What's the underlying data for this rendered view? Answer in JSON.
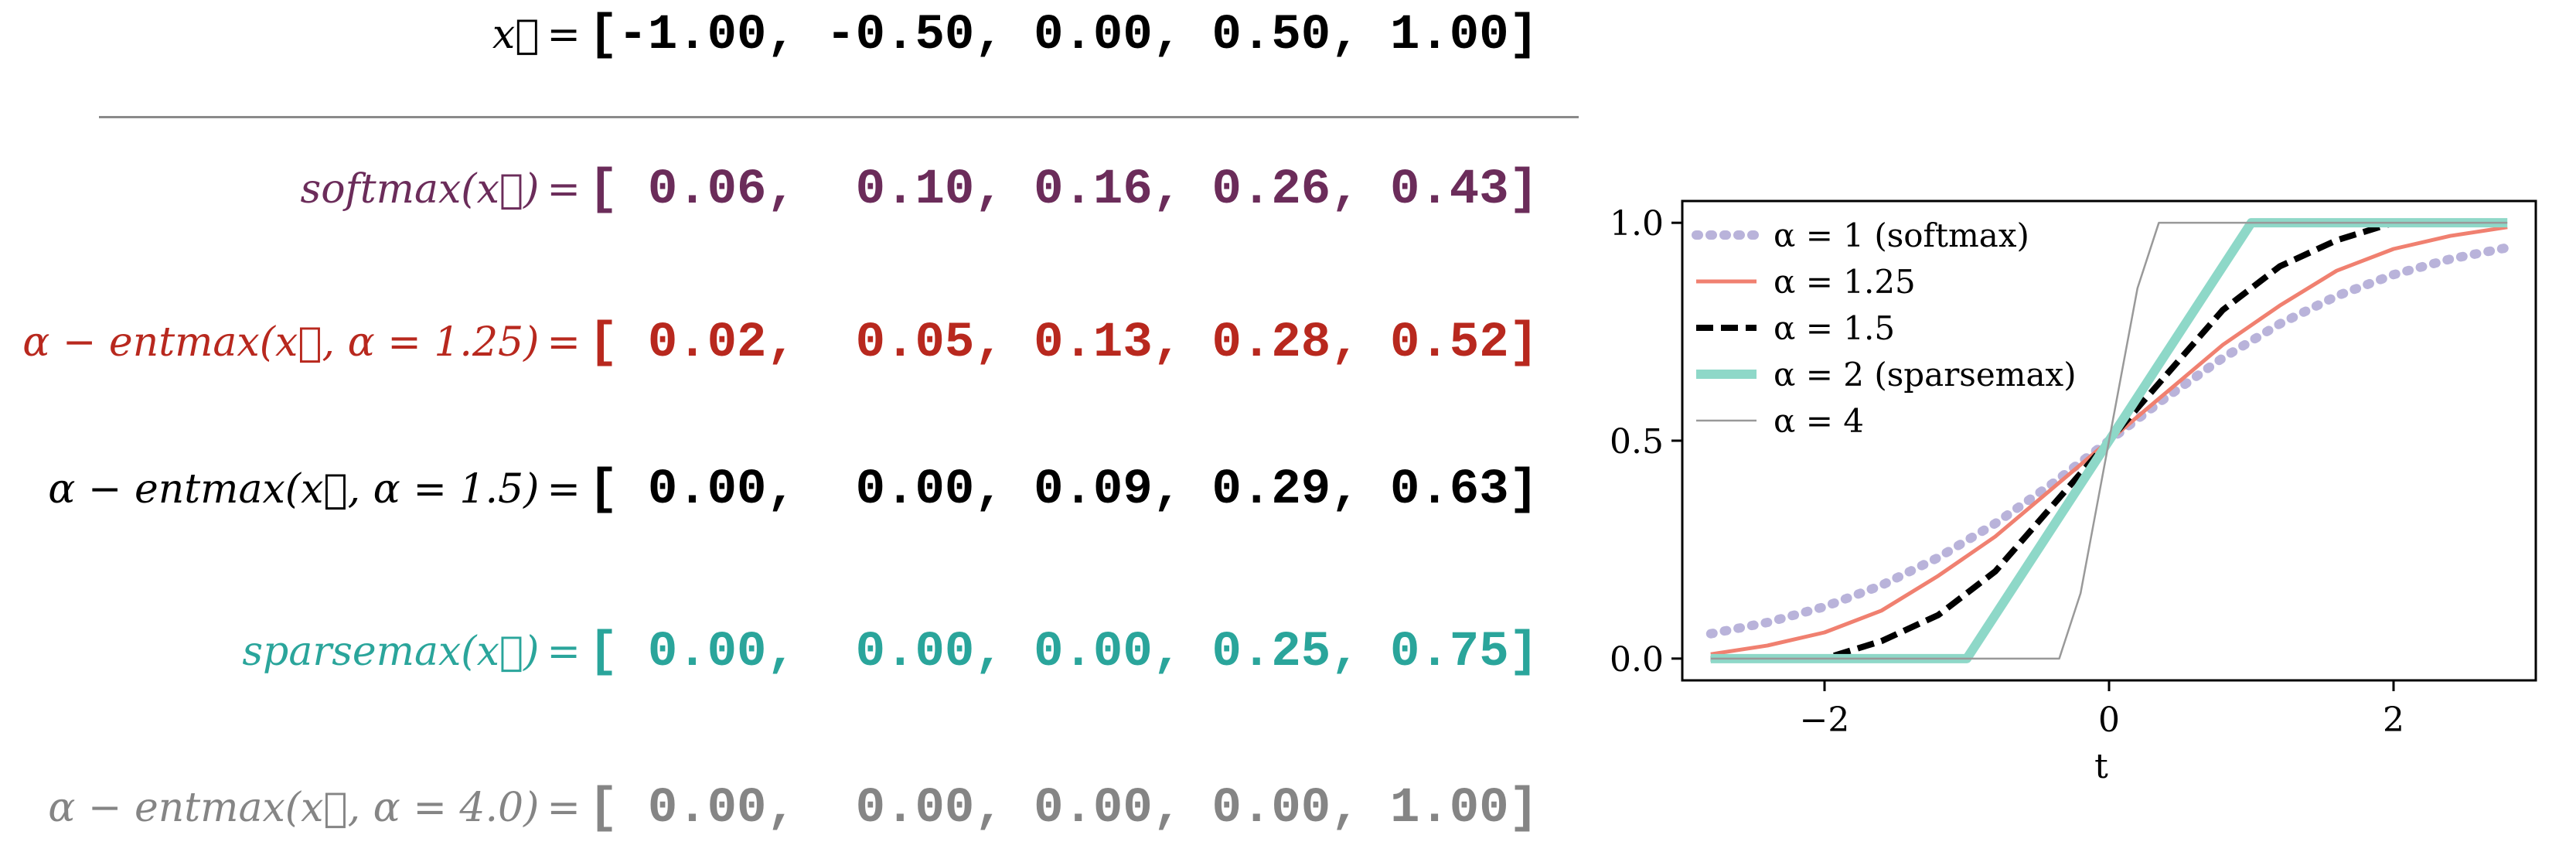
{
  "header": {
    "x_symbol": "x⃗",
    "eq": "=",
    "values": "[-1.00, -0.50, 0.00, 0.50, 1.00]"
  },
  "equations": [
    {
      "label": "softmax(x⃗)",
      "eq": "=",
      "values": "[ 0.06,  0.10, 0.16, 0.26, 0.43]",
      "color": "#6b2c5a"
    },
    {
      "label": "α − entmax(x⃗, α = 1.25)",
      "eq": "=",
      "values": "[ 0.02,  0.05, 0.13, 0.28, 0.52]",
      "color": "#b8281e"
    },
    {
      "label": "α − entmax(x⃗, α = 1.5)",
      "eq": "=",
      "values": "[ 0.00,  0.00, 0.09, 0.29, 0.63]",
      "color": "#000000"
    },
    {
      "label": "sparsemax(x⃗)",
      "eq": "=",
      "values": "[ 0.00,  0.00, 0.00, 0.25, 0.75]",
      "color": "#2aa59b"
    },
    {
      "label": "α − entmax(x⃗, α = 4.0)",
      "eq": "=",
      "values": "[ 0.00,  0.00, 0.00, 0.00, 1.00]",
      "color": "#858585"
    }
  ],
  "chart_data": {
    "type": "line",
    "xlabel": "t",
    "ylabel": "",
    "xlim": [
      -3,
      3
    ],
    "ylim": [
      -0.05,
      1.05
    ],
    "xticks": [
      -2,
      0,
      2
    ],
    "xtick_labels": [
      "−2",
      "0",
      "2"
    ],
    "yticks": [
      0.0,
      0.5,
      1.0
    ],
    "ytick_labels": [
      "0.0",
      "0.5",
      "1.0"
    ],
    "legend_position": "top-left",
    "series": [
      {
        "name": "α = 1 (softmax)",
        "color": "#b9b3da",
        "style": "dotted",
        "x": [
          -2.8,
          -2.4,
          -2,
          -1.6,
          -1.2,
          -0.8,
          -0.4,
          0,
          0.4,
          0.8,
          1.2,
          1.6,
          2,
          2.4,
          2.8
        ],
        "y": [
          0.057,
          0.083,
          0.119,
          0.168,
          0.232,
          0.31,
          0.401,
          0.5,
          0.599,
          0.69,
          0.768,
          0.832,
          0.881,
          0.917,
          0.943
        ]
      },
      {
        "name": "α = 1.25",
        "color": "#f08070",
        "style": "solid",
        "x": [
          -2.8,
          -2.4,
          -2,
          -1.6,
          -1.2,
          -0.8,
          -0.4,
          0,
          0.4,
          0.8,
          1.2,
          1.6,
          2,
          2.4,
          2.8
        ],
        "y": [
          0.01,
          0.03,
          0.06,
          0.11,
          0.19,
          0.28,
          0.39,
          0.5,
          0.61,
          0.72,
          0.81,
          0.89,
          0.94,
          0.97,
          0.99
        ]
      },
      {
        "name": "α = 1.5",
        "color": "#000000",
        "style": "dashed",
        "x": [
          -2.8,
          -2.4,
          -2,
          -1.6,
          -1.2,
          -0.8,
          -0.4,
          0,
          0.4,
          0.8,
          1.2,
          1.6,
          2,
          2.4,
          2.8
        ],
        "y": [
          0,
          0,
          0,
          0.04,
          0.1,
          0.2,
          0.35,
          0.5,
          0.65,
          0.8,
          0.9,
          0.96,
          1,
          1,
          1
        ]
      },
      {
        "name": "α = 2 (sparsemax)",
        "color": "#8ed8c8",
        "style": "thick",
        "x": [
          -2.8,
          -1,
          1,
          2.8
        ],
        "y": [
          0,
          0,
          1,
          1
        ]
      },
      {
        "name": "α = 4",
        "color": "#999999",
        "style": "thin",
        "x": [
          -2.8,
          -0.35,
          -0.2,
          0,
          0.2,
          0.35,
          2.8
        ],
        "y": [
          0,
          0,
          0.15,
          0.5,
          0.85,
          1,
          1
        ]
      }
    ]
  }
}
